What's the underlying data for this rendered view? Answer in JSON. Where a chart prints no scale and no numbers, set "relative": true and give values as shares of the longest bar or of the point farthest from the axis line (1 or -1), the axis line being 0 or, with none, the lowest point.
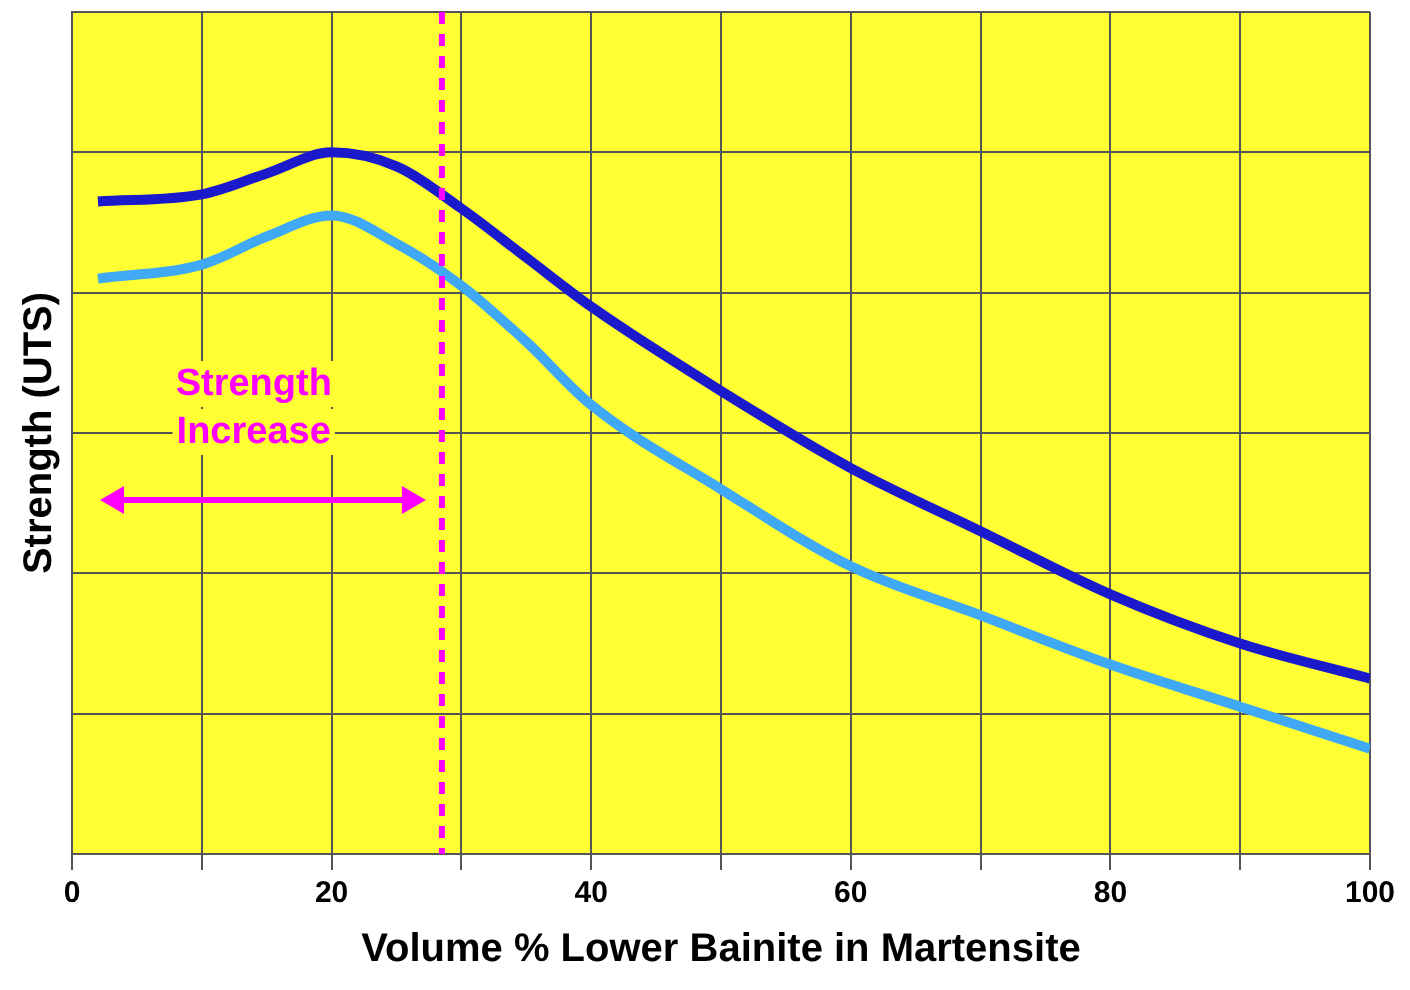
{
  "chart_data": {
    "type": "line",
    "xlabel": "Volume % Lower Bainite in Martensite",
    "ylabel": "Strength (UTS)",
    "relative": true,
    "grid": true,
    "legend": false,
    "marker": "none",
    "line_style": "solid",
    "x": [
      2,
      10,
      15,
      20,
      25,
      30,
      35,
      40,
      50,
      60,
      70,
      80,
      90,
      100
    ],
    "xlim": [
      0,
      100
    ],
    "xticks": [
      0,
      {
        "value": 10,
        "label": null
      },
      20,
      {
        "value": 30,
        "label": null
      },
      40,
      {
        "value": 50,
        "label": null
      },
      60,
      {
        "value": 70,
        "label": null
      },
      80,
      {
        "value": 90,
        "label": null
      },
      100
    ],
    "series": [
      {
        "color": "#1a1acc",
        "values": [
          0.93,
          0.94,
          0.97,
          1,
          0.98,
          0.92,
          0.85,
          0.78,
          0.66,
          0.55,
          0.46,
          0.37,
          0.3,
          0.25
        ]
      },
      {
        "color": "#3fa9f5",
        "values": [
          0.82,
          0.84,
          0.88,
          0.91,
          0.87,
          0.81,
          0.73,
          0.64,
          0.52,
          0.41,
          0.34,
          0.27,
          0.21,
          0.15
        ]
      }
    ],
    "ref_lines": [
      {
        "axis": "x",
        "value": 28.5,
        "color": "#ff00ff",
        "line_style": "dashed"
      }
    ],
    "annotations": [
      "Strength Increase"
    ]
  }
}
